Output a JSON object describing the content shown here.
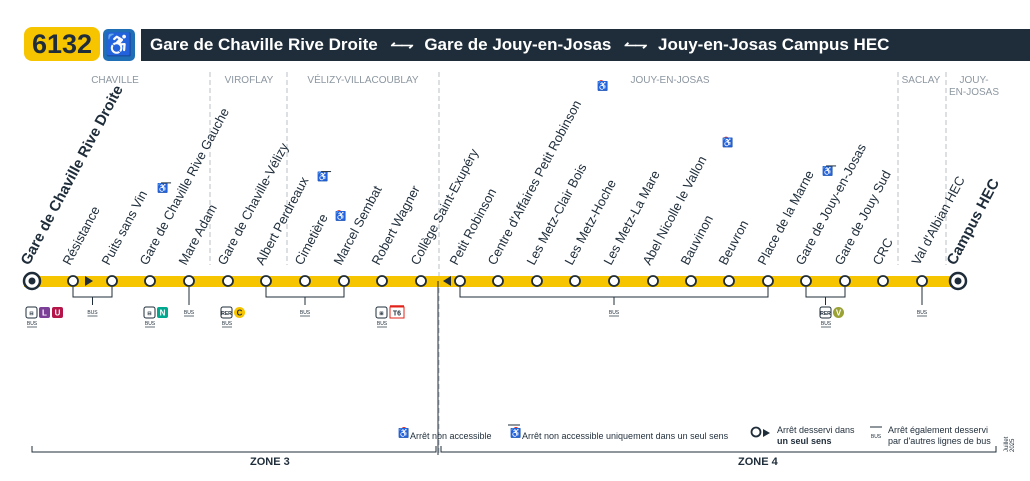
{
  "header": {
    "line_number": "6132",
    "accessibility_icon": "wheelchair-icon",
    "terminus_a": "Gare de Chaville Rive Droite",
    "via": "Gare de Jouy-en-Josas",
    "terminus_b": "Jouy-en-Josas Campus HEC"
  },
  "communes": [
    "CHAVILLE",
    "VIROFLAY",
    "VÉLIZY-VILLACOUBLAY",
    "JOUY-EN-JOSAS",
    "SACLAY",
    "JOUY-\nEN-JOSAS"
  ],
  "stops": [
    {
      "name": "Gare de Chaville Rive Droite",
      "terminus": true,
      "corr": [
        "bus",
        "L",
        "U"
      ]
    },
    {
      "name": "Résistance",
      "corr": []
    },
    {
      "name": "Puits sans Vin",
      "oneway_accessible": true,
      "corr": []
    },
    {
      "name": "Gare de Chaville Rive Gauche",
      "corr": [
        "train",
        "N"
      ]
    },
    {
      "name": "Mare Adam",
      "corr": []
    },
    {
      "name": "Gare de Chaville-Vélizy",
      "corr": [
        "rer",
        "C"
      ]
    },
    {
      "name": "Albert Perdreaux",
      "oneway_accessible": true,
      "corr": []
    },
    {
      "name": "Cimetière",
      "not_accessible": true,
      "corr": []
    },
    {
      "name": "Marcel Sembat",
      "corr": []
    },
    {
      "name": "Robert Wagner",
      "corr": [
        "tram",
        "T6"
      ]
    },
    {
      "name": "Collège Saint-Exupéry",
      "corr": []
    },
    {
      "name": "Petit Robinson",
      "corr": []
    },
    {
      "name": "Centre d'Affaires Petit Robinson",
      "not_accessible": true,
      "corr": []
    },
    {
      "name": "Les Metz-Clair Bois",
      "corr": []
    },
    {
      "name": "Les Metz-Hoche",
      "corr": []
    },
    {
      "name": "Les Metz-La Mare",
      "corr": []
    },
    {
      "name": "Abel Nicolle le Vallon",
      "not_accessible": true,
      "corr": []
    },
    {
      "name": "Bauvinon",
      "corr": []
    },
    {
      "name": "Beuvron",
      "corr": []
    },
    {
      "name": "Place de la Marne",
      "oneway_accessible": true,
      "corr": []
    },
    {
      "name": "Gare de Jouy-en-Josas",
      "corr": [
        "rer",
        "V"
      ]
    },
    {
      "name": "Gare de Jouy Sud",
      "corr": []
    },
    {
      "name": "CRC",
      "corr": []
    },
    {
      "name": "Val d'Albian HEC",
      "corr": []
    },
    {
      "name": "Campus HEC",
      "terminus": true,
      "corr": []
    }
  ],
  "bus_labels": "BUS",
  "mode_labels": {
    "rer": "RER",
    "t6": "T6"
  },
  "zones": {
    "zone3": "ZONE 3",
    "zone4": "ZONE 4"
  },
  "legend": {
    "not_accessible": "Arrêt non accessible",
    "oneway_not_accessible": "Arrêt non accessible uniquement dans un seul sens",
    "oneway_served_1": "Arrêt desservi dans",
    "oneway_served_2": "un seul sens",
    "also_served_1": "Arrêt également desservi",
    "also_served_2": "par d'autres lignes de bus",
    "date": "Juillet 2025"
  },
  "colors": {
    "line_yellow": "#f7c400",
    "navy": "#1f2d3a",
    "L": "#7b3f98",
    "U": "#b5164a",
    "N": "#00a88f",
    "C": "#f7c400",
    "V": "#9aa236",
    "T6": "#e2231a",
    "pmr_blue": "#1f6fb6"
  }
}
